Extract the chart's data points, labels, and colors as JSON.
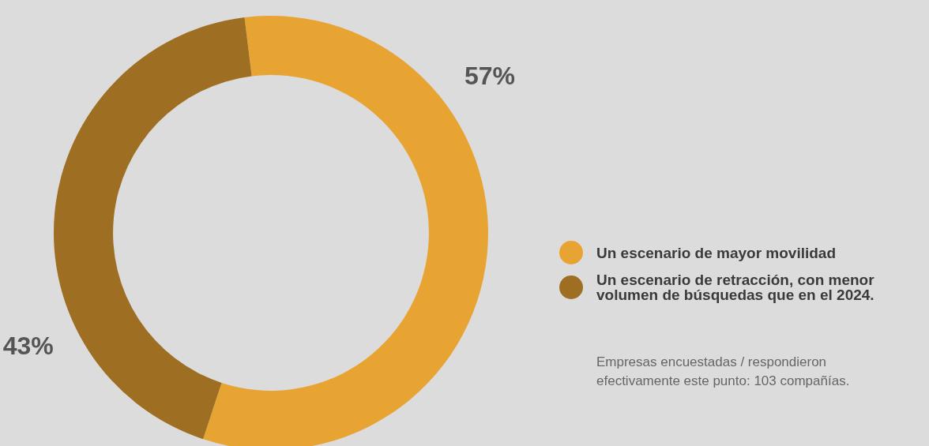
{
  "chart_data": {
    "type": "donut",
    "categories": [
      "Un escenario de mayor movilidad",
      "Un escenario de retracción, con menor volumen de búsquedas que en el 2024."
    ],
    "values": [
      57,
      43
    ],
    "colors": [
      "#e8a433",
      "#9e6e22"
    ],
    "value_labels": [
      "57%",
      "43%"
    ],
    "legend": "right",
    "annotations": [
      "Empresas encuestadas / respondieron efectivamente este punto: 103 compañías."
    ]
  }
}
